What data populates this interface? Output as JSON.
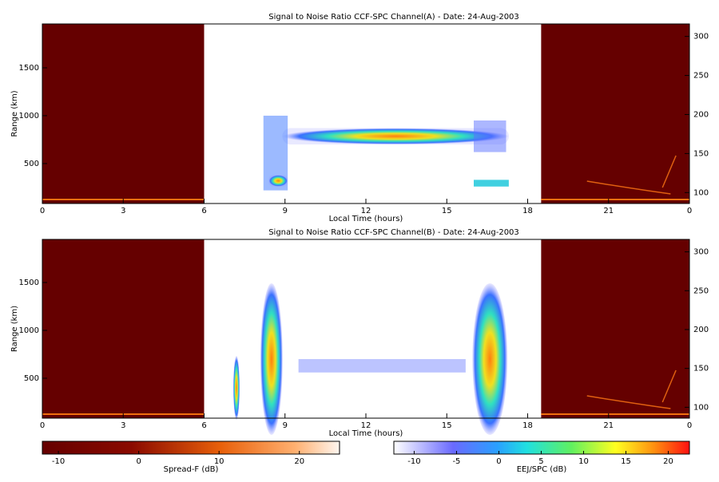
{
  "chart_data": [
    {
      "type": "heatmap",
      "title": "Signal to Noise Ratio CCF-SPC Channel(A) - Date: 24-Aug-2003",
      "xlabel": "Local Time (hours)",
      "ylabel": "Range (km)",
      "xlim": [
        0,
        24
      ],
      "xticks": [
        0,
        3,
        6,
        9,
        12,
        15,
        18,
        21,
        {
          "value": 24,
          "label": "0"
        }
      ],
      "ylim": [
        83,
        1958
      ],
      "yticks": [
        500,
        1000,
        1500
      ],
      "y2lim": [
        86,
        316
      ],
      "y2ticks": [
        100,
        150,
        200,
        250,
        300
      ]
    },
    {
      "type": "heatmap",
      "title": "Signal to Noise Ratio CCF-SPC Channel(B) - Date: 24-Aug-2003",
      "xlabel": "Local Time (hours)",
      "ylabel": "Range (km)",
      "xlim": [
        0,
        24
      ],
      "xticks": [
        0,
        3,
        6,
        9,
        12,
        15,
        18,
        21,
        {
          "value": 24,
          "label": "0"
        }
      ],
      "ylim": [
        83,
        1950
      ],
      "yticks": [
        500,
        1000,
        1500
      ],
      "y2lim": [
        86,
        316
      ],
      "y2ticks": [
        100,
        150,
        200,
        250,
        300
      ]
    }
  ],
  "colorbars": [
    {
      "label": "Spread-F (dB)",
      "lim": [
        -12,
        25
      ],
      "ticks": [
        -10,
        0,
        10,
        20
      ]
    },
    {
      "label": "EEJ/SPC (dB)",
      "lim": [
        -12.4,
        22.5
      ],
      "ticks": [
        -10,
        -5,
        0,
        5,
        10,
        15,
        20
      ]
    }
  ]
}
